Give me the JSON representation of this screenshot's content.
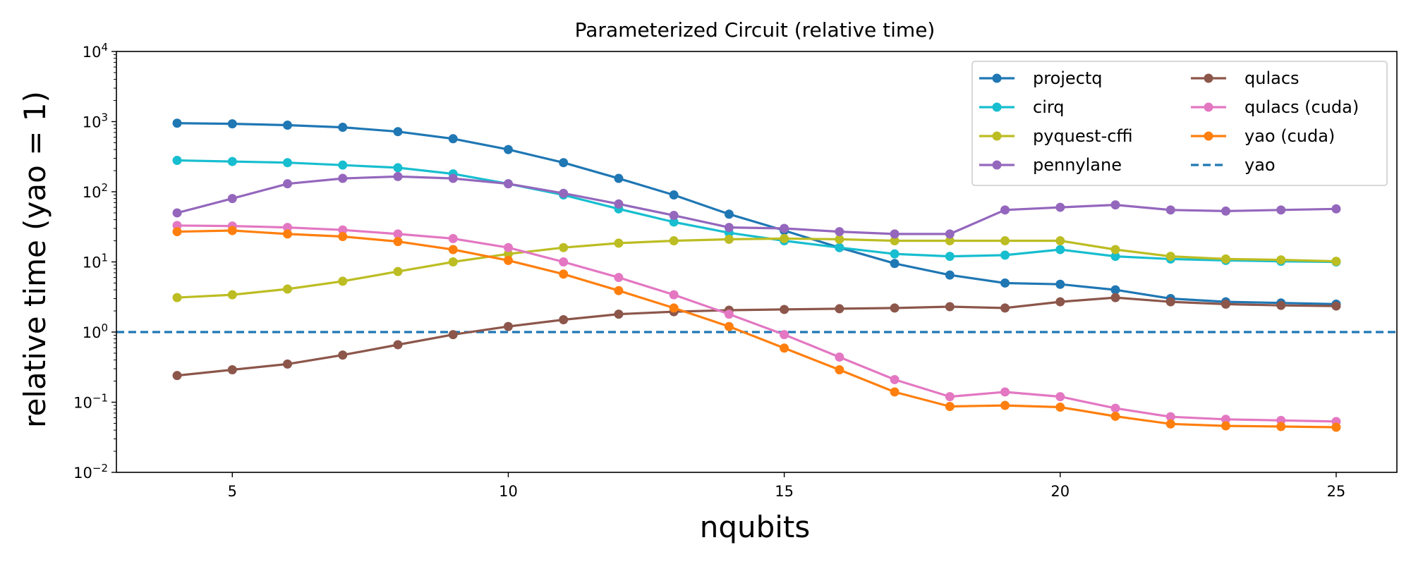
{
  "chart_data": {
    "type": "line",
    "title": "Parameterized Circuit (relative time)",
    "xlabel": "nqubits",
    "ylabel": "relative time (yao = 1)",
    "y_scale": "log",
    "xlim": [
      2.9,
      26.1
    ],
    "ylim": [
      0.01,
      10000
    ],
    "x_ticks": [
      5,
      10,
      15,
      20,
      25
    ],
    "y_ticks": [
      0.01,
      0.1,
      1,
      10,
      100,
      1000,
      10000
    ],
    "legend_position": "top-right",
    "legend_columns": 2,
    "grid": false,
    "x": [
      4,
      5,
      6,
      7,
      8,
      9,
      10,
      11,
      12,
      13,
      14,
      15,
      16,
      17,
      18,
      19,
      20,
      21,
      22,
      23,
      24,
      25
    ],
    "series": [
      {
        "name": "projectq",
        "color": "#1f77b4",
        "values": [
          950,
          930,
          890,
          830,
          720,
          570,
          400,
          260,
          155,
          90,
          48,
          28,
          16,
          9.5,
          6.5,
          5,
          4.8,
          4,
          3,
          2.7,
          2.6,
          2.5
        ]
      },
      {
        "name": "cirq",
        "color": "#17becf",
        "values": [
          280,
          270,
          260,
          240,
          220,
          180,
          130,
          90,
          57,
          37,
          26,
          20,
          16,
          13,
          12,
          12.5,
          15,
          12,
          11,
          10.5,
          10.2,
          10
        ]
      },
      {
        "name": "pyquest-cffi",
        "color": "#bcbd22",
        "values": [
          3.1,
          3.4,
          4.1,
          5.3,
          7.3,
          10,
          13,
          16,
          18.5,
          20,
          21,
          21.5,
          21,
          20,
          20,
          20,
          20,
          15,
          12,
          11,
          10.7,
          10.2
        ]
      },
      {
        "name": "pennylane",
        "color": "#9467bd",
        "values": [
          50,
          80,
          130,
          155,
          165,
          155,
          130,
          95,
          67,
          46,
          31,
          30,
          27,
          25,
          25,
          55,
          60,
          65,
          55,
          53,
          55,
          57
        ]
      },
      {
        "name": "qulacs",
        "color": "#8c564b",
        "values": [
          0.24,
          0.29,
          0.35,
          0.47,
          0.66,
          0.92,
          1.2,
          1.5,
          1.8,
          1.95,
          2.05,
          2.1,
          2.15,
          2.2,
          2.3,
          2.2,
          2.7,
          3.1,
          2.7,
          2.5,
          2.4,
          2.35
        ]
      },
      {
        "name": "qulacs (cuda)",
        "color": "#e377c2",
        "values": [
          33,
          32.5,
          31,
          28.5,
          25,
          21.5,
          16,
          10,
          6,
          3.4,
          1.8,
          0.92,
          0.44,
          0.21,
          0.12,
          0.14,
          0.12,
          0.082,
          0.062,
          0.057,
          0.055,
          0.053
        ]
      },
      {
        "name": "yao (cuda)",
        "color": "#ff7f0e",
        "values": [
          27,
          28,
          25,
          23,
          19.5,
          15,
          10.5,
          6.7,
          3.9,
          2.2,
          1.2,
          0.59,
          0.29,
          0.14,
          0.087,
          0.09,
          0.085,
          0.063,
          0.049,
          0.046,
          0.045,
          0.044
        ]
      }
    ],
    "reference_line": {
      "name": "yao",
      "color": "#1f77b4",
      "y": 1,
      "style": "dashed"
    }
  },
  "legend": {
    "items": [
      "projectq",
      "cirq",
      "pyquest-cffi",
      "pennylane",
      "qulacs",
      "qulacs (cuda)",
      "yao (cuda)",
      "yao"
    ]
  }
}
